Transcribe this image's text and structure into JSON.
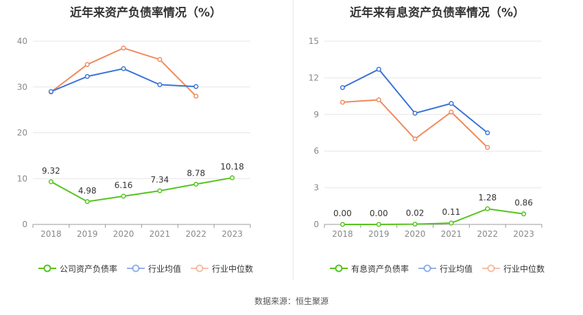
{
  "colors": {
    "company": "#52c41a",
    "avg": "#3a73d8",
    "median": "#f08a5d",
    "grid": "#e6e6e6",
    "axis": "#999999",
    "tick_label": "#888888",
    "data_label": "#333333"
  },
  "source": "数据来源：恒生聚源",
  "chart_data": [
    {
      "type": "line",
      "title": "近年来资产负债率情况（%）",
      "xlabel": "",
      "ylabel": "",
      "x": [
        "2018",
        "2019",
        "2020",
        "2021",
        "2022",
        "2023"
      ],
      "ylim": [
        0,
        40
      ],
      "yticks": [
        "0",
        "10",
        "20",
        "30",
        "40"
      ],
      "grid": true,
      "legend_position": "bottom",
      "series": [
        {
          "name": "公司资产负债率",
          "color_key": "company",
          "values": [
            9.32,
            4.98,
            6.16,
            7.34,
            8.78,
            10.18
          ],
          "labels": [
            "9.32",
            "4.98",
            "6.16",
            "7.34",
            "8.78",
            "10.18"
          ]
        },
        {
          "name": "行业均值",
          "color_key": "avg",
          "values": [
            29.0,
            32.3,
            34.0,
            30.5,
            30.1,
            null
          ]
        },
        {
          "name": "行业中位数",
          "color_key": "median",
          "values": [
            28.9,
            34.9,
            38.5,
            36.0,
            28.0,
            null
          ]
        }
      ]
    },
    {
      "type": "line",
      "title": "近年来有息资产负债率情况（%）",
      "xlabel": "",
      "ylabel": "",
      "x": [
        "2018",
        "2019",
        "2020",
        "2021",
        "2022",
        "2023"
      ],
      "ylim": [
        0,
        15
      ],
      "yticks": [
        "0",
        "3",
        "6",
        "9",
        "12",
        "15"
      ],
      "grid": true,
      "legend_position": "bottom",
      "series": [
        {
          "name": "有息资产负债率",
          "color_key": "company",
          "values": [
            0.0,
            0.0,
            0.02,
            0.11,
            1.28,
            0.86
          ],
          "labels": [
            "0.00",
            "0.00",
            "0.02",
            "0.11",
            "1.28",
            "0.86"
          ]
        },
        {
          "name": "行业均值",
          "color_key": "avg",
          "values": [
            11.2,
            12.7,
            9.1,
            9.9,
            7.5,
            null
          ]
        },
        {
          "name": "行业中位数",
          "color_key": "median",
          "values": [
            10.0,
            10.2,
            7.0,
            9.2,
            6.3,
            null
          ]
        }
      ]
    }
  ]
}
